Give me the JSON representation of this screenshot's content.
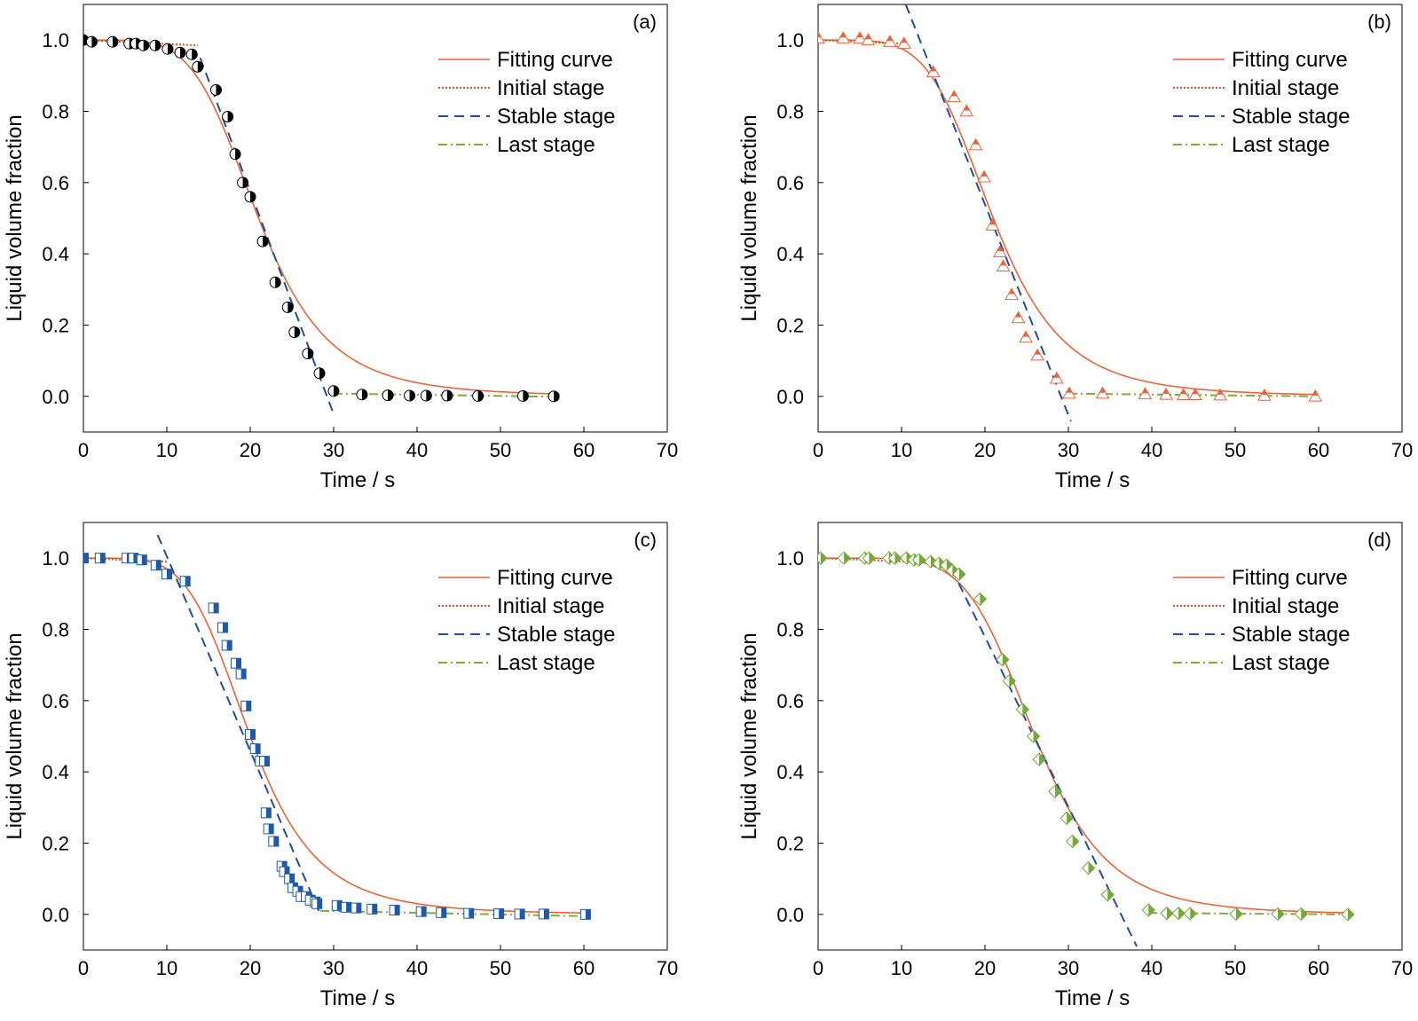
{
  "figure": {
    "legend_labels": [
      "Fitting curve",
      "Initial stage",
      "Stable stage",
      "Last stage"
    ]
  },
  "colors": {
    "fit": "#e8643c",
    "initial": "#d4572a",
    "stable": "#1f4e9a",
    "last": "#7cae3c",
    "marker_a": "#000000",
    "marker_b": "#e8643c",
    "marker_c": "#1f5aa8",
    "marker_d": "#74a83a"
  },
  "chart_data": [
    {
      "panel_label": "(a)",
      "type": "scatter",
      "xlabel": "Time / s",
      "ylabel": "Liquid volume fraction",
      "xlim": [
        0,
        70
      ],
      "ylim": [
        -0.1,
        1.1
      ],
      "xticks": [
        0,
        10,
        20,
        30,
        40,
        50,
        60,
        70
      ],
      "yticks": [
        0.0,
        0.2,
        0.4,
        0.6,
        0.8,
        1.0
      ],
      "grid": false,
      "legend_position": "top-right",
      "marker": "half-circle",
      "points": {
        "x": [
          0,
          1,
          3.5,
          5.5,
          6.3,
          7.2,
          8.6,
          10.1,
          11.6,
          13.0,
          13.7,
          15.9,
          17.3,
          18.2,
          19.1,
          20.0,
          21.5,
          23.0,
          24.5,
          25.3,
          26.9,
          28.3,
          30.0,
          33.4,
          36.5,
          39.1,
          41.1,
          43.6,
          47.3,
          52.7,
          56.4
        ],
        "y": [
          1.0,
          0.995,
          0.995,
          0.99,
          0.99,
          0.985,
          0.985,
          0.975,
          0.965,
          0.96,
          0.925,
          0.86,
          0.785,
          0.68,
          0.6,
          0.56,
          0.435,
          0.32,
          0.25,
          0.18,
          0.12,
          0.065,
          0.015,
          0.005,
          0.003,
          0.002,
          0.002,
          0.002,
          0.001,
          0.001,
          0.0
        ]
      },
      "fit": {
        "x0": 21,
        "p": 5
      },
      "initial_line": {
        "x": [
          0,
          13.7
        ],
        "y": [
          1.0,
          0.985
        ]
      },
      "stable_line": {
        "x": [
          14,
          30
        ],
        "y": [
          0.95,
          -0.05
        ]
      },
      "last_line": {
        "x": [
          30,
          56.4
        ],
        "y": [
          0.008,
          -0.001
        ]
      }
    },
    {
      "panel_label": "(b)",
      "type": "scatter",
      "xlabel": "Time / s",
      "ylabel": "Liquid volume fraction",
      "xlim": [
        0,
        70
      ],
      "ylim": [
        -0.1,
        1.1
      ],
      "xticks": [
        0,
        10,
        20,
        30,
        40,
        50,
        60,
        70
      ],
      "yticks": [
        0.0,
        0.2,
        0.4,
        0.6,
        0.8,
        1.0
      ],
      "grid": false,
      "legend_position": "top-right",
      "marker": "half-triangle",
      "points": {
        "x": [
          0,
          3.0,
          5.0,
          6.0,
          8.6,
          10.3,
          13.8,
          16.3,
          17.8,
          18.9,
          19.9,
          20.9,
          21.8,
          22.2,
          23.2,
          24.0,
          24.9,
          26.3,
          28.6,
          30.1,
          34.1,
          39.2,
          41.7,
          43.8,
          45.2,
          48.2,
          53.5,
          59.6
        ],
        "y": [
          1.005,
          1.005,
          1.005,
          1.0,
          0.995,
          0.99,
          0.91,
          0.84,
          0.8,
          0.705,
          0.615,
          0.48,
          0.405,
          0.365,
          0.285,
          0.22,
          0.165,
          0.115,
          0.05,
          0.008,
          0.008,
          0.006,
          0.005,
          0.004,
          0.004,
          0.003,
          0.002,
          0.0
        ]
      },
      "fit": {
        "x0": 21,
        "p": 5
      },
      "initial_line": {
        "x": [
          0,
          10.3
        ],
        "y": [
          1.0,
          0.99
        ]
      },
      "stable_line": {
        "x": [
          10.5,
          30.3
        ],
        "y": [
          1.1,
          -0.07
        ]
      },
      "last_line": {
        "x": [
          30,
          59.6
        ],
        "y": [
          0.008,
          0.0
        ]
      }
    },
    {
      "panel_label": "(c)",
      "type": "scatter",
      "xlabel": "Time / s",
      "ylabel": "Liquid volume fraction",
      "xlim": [
        0,
        70
      ],
      "ylim": [
        -0.1,
        1.1
      ],
      "xticks": [
        0,
        10,
        20,
        30,
        40,
        50,
        60,
        70
      ],
      "yticks": [
        0.0,
        0.2,
        0.4,
        0.6,
        0.8,
        1.0
      ],
      "grid": false,
      "legend_position": "top-right",
      "marker": "half-square",
      "points": {
        "x": [
          0,
          2.0,
          5.2,
          6.0,
          7.0,
          8.7,
          10.0,
          12.2,
          15.6,
          16.7,
          17.2,
          18.3,
          18.9,
          19.5,
          20.0,
          20.6,
          21.2,
          21.7,
          21.9,
          22.2,
          22.8,
          23.8,
          24.1,
          24.7,
          25.1,
          25.7,
          26.1,
          26.7,
          27.2,
          27.8,
          28.0,
          30.4,
          31.5,
          32.7,
          34.6,
          37.3,
          40.5,
          42.9,
          46.2,
          49.8,
          52.3,
          55.2,
          60.2
        ],
        "y": [
          1.0,
          1.0,
          1.0,
          1.0,
          0.995,
          0.98,
          0.955,
          0.935,
          0.86,
          0.805,
          0.755,
          0.705,
          0.675,
          0.585,
          0.505,
          0.465,
          0.43,
          0.43,
          0.285,
          0.24,
          0.205,
          0.135,
          0.12,
          0.1,
          0.075,
          0.065,
          0.05,
          0.05,
          0.04,
          0.035,
          0.03,
          0.025,
          0.02,
          0.018,
          0.015,
          0.012,
          0.008,
          0.005,
          0.003,
          0.002,
          0.001,
          0.001,
          0.0
        ]
      },
      "fit": {
        "x0": 20,
        "p": 5
      },
      "initial_line": {
        "x": [
          0,
          10
        ],
        "y": [
          1.0,
          0.99
        ]
      },
      "stable_line": {
        "x": [
          8.9,
          28.4
        ],
        "y": [
          1.065,
          0.0
        ]
      },
      "last_line": {
        "x": [
          28.4,
          60.2
        ],
        "y": [
          0.01,
          -0.005
        ]
      }
    },
    {
      "panel_label": "(d)",
      "type": "scatter",
      "xlabel": "Time / s",
      "ylabel": "Liquid volume fraction",
      "xlim": [
        0,
        70
      ],
      "ylim": [
        -0.1,
        1.1
      ],
      "xticks": [
        0,
        10,
        20,
        30,
        40,
        50,
        60,
        70
      ],
      "yticks": [
        0.0,
        0.2,
        0.4,
        0.6,
        0.8,
        1.0
      ],
      "grid": false,
      "legend_position": "top-right",
      "marker": "half-diamond",
      "points": {
        "x": [
          0.3,
          3.1,
          5.6,
          6.1,
          8.5,
          9.2,
          10.6,
          11.5,
          12.1,
          13.5,
          14.5,
          15.4,
          16.1,
          16.9,
          19.4,
          22.1,
          22.9,
          24.5,
          25.8,
          26.5,
          28.4,
          29.8,
          30.5,
          32.4,
          34.7,
          39.6,
          41.8,
          43.2,
          44.6,
          50.1,
          55.1,
          57.9,
          63.5
        ],
        "y": [
          1.0,
          1.0,
          1.0,
          1.0,
          1.0,
          1.0,
          1.0,
          0.995,
          0.995,
          0.99,
          0.985,
          0.98,
          0.965,
          0.955,
          0.885,
          0.715,
          0.655,
          0.575,
          0.5,
          0.435,
          0.345,
          0.27,
          0.205,
          0.13,
          0.055,
          0.012,
          0.003,
          0.003,
          0.002,
          0.001,
          0.001,
          0.001,
          0.0
        ]
      },
      "fit": {
        "x0": 26,
        "p": 6
      },
      "initial_line": {
        "x": [
          0.3,
          16.1
        ],
        "y": [
          1.0,
          0.985
        ]
      },
      "stable_line": {
        "x": [
          16,
          38.2
        ],
        "y": [
          0.97,
          -0.09
        ]
      },
      "last_line": {
        "x": [
          39.6,
          63.5
        ],
        "y": [
          0.004,
          0.0
        ]
      }
    }
  ]
}
